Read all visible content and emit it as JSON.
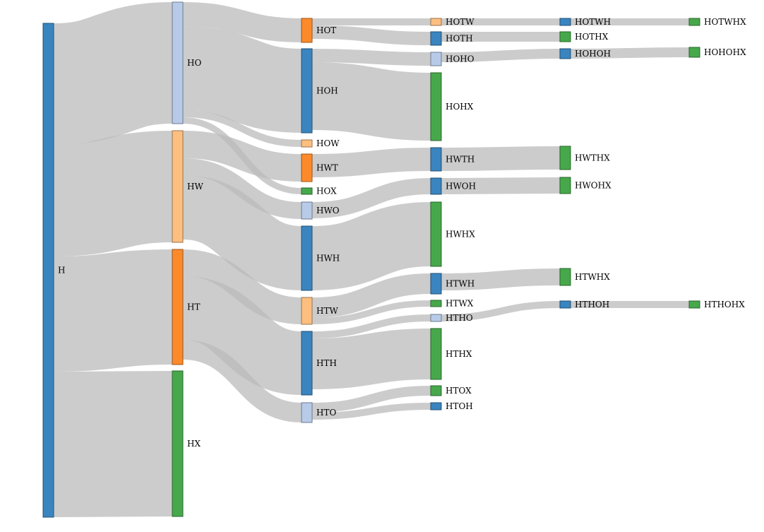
{
  "colors": {
    "link": "#bbbbbb",
    "H_family": "#3a85bf",
    "O_family": "#b7cbe9",
    "W_family": "#fdbf80",
    "T_family": "#fd8a2a",
    "X_family": "#46a84a"
  },
  "diagram": {
    "type": "sankey",
    "nodes": [
      {
        "id": "H",
        "label": "H",
        "color": "#3a85bf"
      },
      {
        "id": "HO",
        "label": "HO",
        "color": "#b7cbe9"
      },
      {
        "id": "HW",
        "label": "HW",
        "color": "#fdbf80"
      },
      {
        "id": "HT",
        "label": "HT",
        "color": "#fd8a2a"
      },
      {
        "id": "HX",
        "label": "HX",
        "color": "#46a84a"
      },
      {
        "id": "HOT",
        "label": "HOT",
        "color": "#fd8a2a"
      },
      {
        "id": "HOH",
        "label": "HOH",
        "color": "#3a85bf"
      },
      {
        "id": "HOW",
        "label": "HOW",
        "color": "#fdbf80"
      },
      {
        "id": "HWT",
        "label": "HWT",
        "color": "#fd8a2a"
      },
      {
        "id": "HOX",
        "label": "HOX",
        "color": "#46a84a"
      },
      {
        "id": "HWO",
        "label": "HWO",
        "color": "#b7cbe9"
      },
      {
        "id": "HWH",
        "label": "HWH",
        "color": "#3a85bf"
      },
      {
        "id": "HTW",
        "label": "HTW",
        "color": "#fdbf80"
      },
      {
        "id": "HTH",
        "label": "HTH",
        "color": "#3a85bf"
      },
      {
        "id": "HTO",
        "label": "HTO",
        "color": "#b7cbe9"
      },
      {
        "id": "HOTW",
        "label": "HOTW",
        "color": "#fdbf80"
      },
      {
        "id": "HOTH",
        "label": "HOTH",
        "color": "#3a85bf"
      },
      {
        "id": "HOHO",
        "label": "HOHO",
        "color": "#b7cbe9"
      },
      {
        "id": "HOHX",
        "label": "HOHX",
        "color": "#46a84a"
      },
      {
        "id": "HWTH",
        "label": "HWTH",
        "color": "#3a85bf"
      },
      {
        "id": "HWOH",
        "label": "HWOH",
        "color": "#3a85bf"
      },
      {
        "id": "HWHX",
        "label": "HWHX",
        "color": "#46a84a"
      },
      {
        "id": "HTWH",
        "label": "HTWH",
        "color": "#3a85bf"
      },
      {
        "id": "HTWX",
        "label": "HTWX",
        "color": "#46a84a"
      },
      {
        "id": "HTHO",
        "label": "HTHO",
        "color": "#b7cbe9"
      },
      {
        "id": "HTHX",
        "label": "HTHX",
        "color": "#46a84a"
      },
      {
        "id": "HTOX",
        "label": "HTOX",
        "color": "#46a84a"
      },
      {
        "id": "HTOH",
        "label": "HTOH",
        "color": "#3a85bf"
      },
      {
        "id": "HOTWH",
        "label": "HOTWH",
        "color": "#3a85bf"
      },
      {
        "id": "HOTHX",
        "label": "HOTHX",
        "color": "#46a84a"
      },
      {
        "id": "HOHOH",
        "label": "HOHOH",
        "color": "#3a85bf"
      },
      {
        "id": "HWTHX",
        "label": "HWTHX",
        "color": "#46a84a"
      },
      {
        "id": "HWOHX",
        "label": "HWOHX",
        "color": "#46a84a"
      },
      {
        "id": "HTWHX",
        "label": "HTWHX",
        "color": "#46a84a"
      },
      {
        "id": "HTHOH",
        "label": "HTHOH",
        "color": "#3a85bf"
      },
      {
        "id": "HOTWHX",
        "label": "HOTWHX",
        "color": "#46a84a"
      },
      {
        "id": "HOHOHX",
        "label": "HOHOHX",
        "color": "#46a84a"
      },
      {
        "id": "HTHOHX",
        "label": "HTHOHX",
        "color": "#46a84a"
      }
    ],
    "links": [
      {
        "source": "H",
        "target": "HO",
        "value": 172
      },
      {
        "source": "H",
        "target": "HW",
        "value": 158
      },
      {
        "source": "H",
        "target": "HT",
        "value": 163
      },
      {
        "source": "H",
        "target": "HX",
        "value": 206
      },
      {
        "source": "HO",
        "target": "HOT",
        "value": 34
      },
      {
        "source": "HO",
        "target": "HOH",
        "value": 119
      },
      {
        "source": "HO",
        "target": "HOW",
        "value": 10
      },
      {
        "source": "HO",
        "target": "HOX",
        "value": 9
      },
      {
        "source": "HW",
        "target": "HWT",
        "value": 39
      },
      {
        "source": "HW",
        "target": "HWO",
        "value": 24
      },
      {
        "source": "HW",
        "target": "HWH",
        "value": 91
      },
      {
        "source": "HT",
        "target": "HTW",
        "value": 38
      },
      {
        "source": "HT",
        "target": "HTH",
        "value": 90
      },
      {
        "source": "HT",
        "target": "HTO",
        "value": 28
      },
      {
        "source": "HOT",
        "target": "HOTW",
        "value": 10
      },
      {
        "source": "HOT",
        "target": "HOTH",
        "value": 19
      },
      {
        "source": "HOH",
        "target": "HOHO",
        "value": 19
      },
      {
        "source": "HOH",
        "target": "HOHX",
        "value": 96
      },
      {
        "source": "HWT",
        "target": "HWTH",
        "value": 33
      },
      {
        "source": "HWO",
        "target": "HWOH",
        "value": 23
      },
      {
        "source": "HWH",
        "target": "HWHX",
        "value": 91
      },
      {
        "source": "HTW",
        "target": "HTWH",
        "value": 29
      },
      {
        "source": "HTW",
        "target": "HTWX",
        "value": 9
      },
      {
        "source": "HTH",
        "target": "HTHO",
        "value": 10
      },
      {
        "source": "HTH",
        "target": "HTHX",
        "value": 72
      },
      {
        "source": "HTO",
        "target": "HTOX",
        "value": 14
      },
      {
        "source": "HTO",
        "target": "HTOH",
        "value": 10
      },
      {
        "source": "HOTW",
        "target": "HOTWH",
        "value": 10
      },
      {
        "source": "HOTH",
        "target": "HOTHX",
        "value": 14
      },
      {
        "source": "HOHO",
        "target": "HOHOH",
        "value": 14
      },
      {
        "source": "HWTH",
        "target": "HWTHX",
        "value": 33
      },
      {
        "source": "HWOH",
        "target": "HWOHX",
        "value": 23
      },
      {
        "source": "HTWH",
        "target": "HTWHX",
        "value": 24
      },
      {
        "source": "HTHO",
        "target": "HTHOH",
        "value": 10
      },
      {
        "source": "HOTWH",
        "target": "HOTWHX",
        "value": 10
      },
      {
        "source": "HOHOH",
        "target": "HOHOHX",
        "value": 14
      },
      {
        "source": "HTHOH",
        "target": "HTHOHX",
        "value": 10
      }
    ]
  }
}
